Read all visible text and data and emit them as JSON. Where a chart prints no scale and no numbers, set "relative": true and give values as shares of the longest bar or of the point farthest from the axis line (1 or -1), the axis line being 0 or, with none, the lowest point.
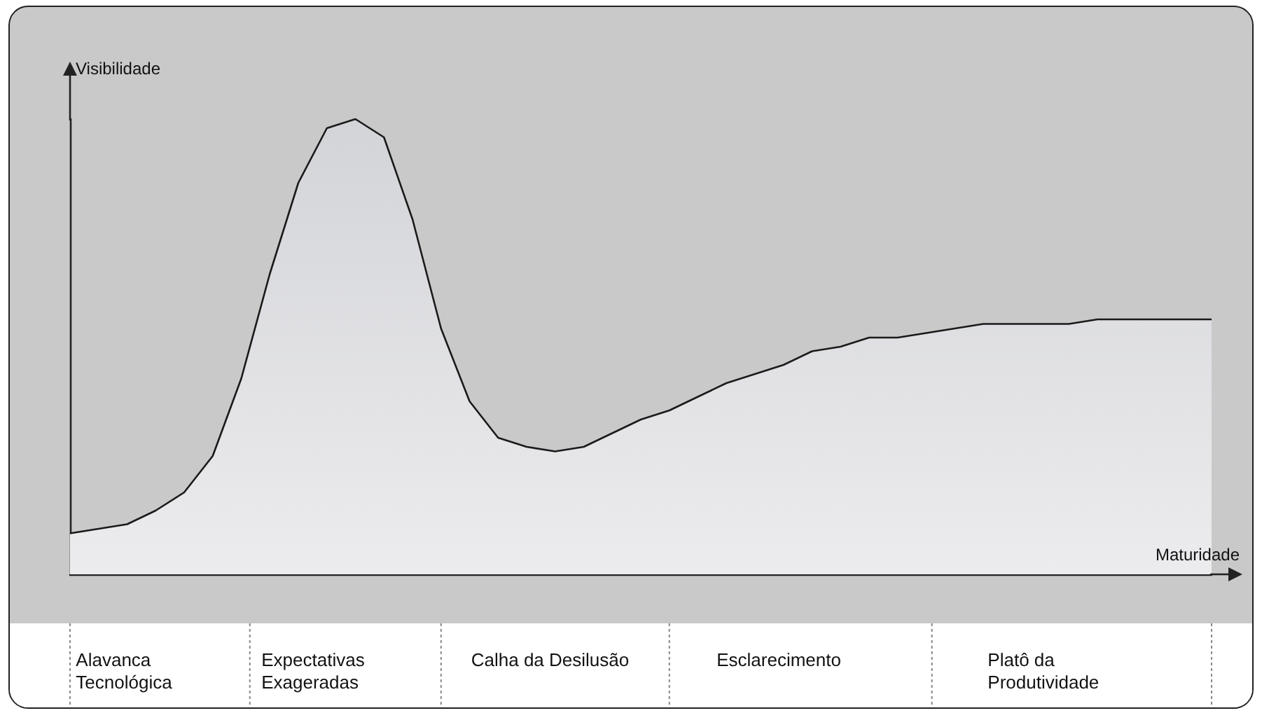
{
  "chart_data": {
    "type": "area",
    "relative": true,
    "xlabel": "Maturidade",
    "ylabel": "Visibilidade",
    "color": "#1a1a1a",
    "marker": "none",
    "categories": [
      null,
      null,
      null,
      null,
      null,
      null,
      null,
      null,
      null,
      null,
      null,
      null,
      null,
      null,
      null,
      null,
      null,
      null,
      null,
      null,
      null,
      null,
      null,
      null,
      null,
      null,
      null,
      null,
      null,
      null,
      null,
      null,
      null,
      null,
      null,
      null,
      null,
      null,
      null,
      null,
      null
    ],
    "values": [
      0.09,
      0.1,
      0.11,
      0.14,
      0.18,
      0.26,
      0.43,
      0.66,
      0.86,
      0.98,
      1,
      0.96,
      0.78,
      0.54,
      0.38,
      0.3,
      0.28,
      0.27,
      0.28,
      0.31,
      0.34,
      0.36,
      0.39,
      0.42,
      0.44,
      0.46,
      0.49,
      0.5,
      0.52,
      0.52,
      0.53,
      0.54,
      0.55,
      0.55,
      0.55,
      0.55,
      0.56,
      0.56,
      0.56,
      0.56,
      0.56
    ],
    "annotations": [
      "Alavanca Tecnológica",
      "Expectativas Exageradas",
      "Calha da Desilusão",
      "Esclarecimento",
      "Platô da Produtividade"
    ]
  }
}
